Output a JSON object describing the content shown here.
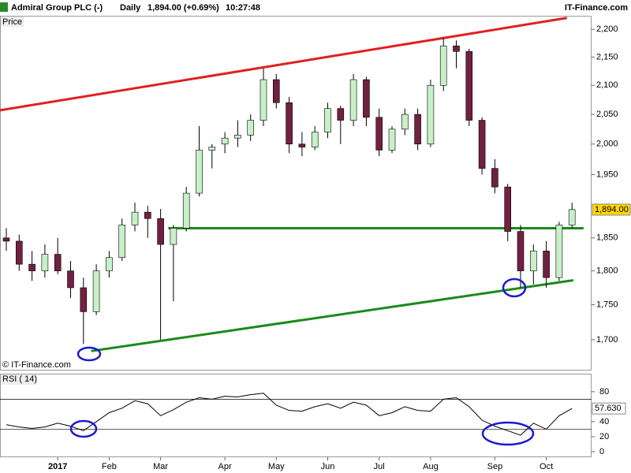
{
  "header": {
    "title": "Admiral Group PLC (-)",
    "period": "Daily",
    "quote": "1,894.00 (+0.69%)",
    "time": "10:27:48",
    "brand": "IT-Finance.com"
  },
  "chart_data": [
    {
      "type": "candlestick",
      "panel_label": "Price",
      "copyright": "© IT-Finance.com",
      "log_scale": true,
      "up_color": "#c8f0c8",
      "down_color": "#702040",
      "categories": [
        null,
        null,
        null,
        null,
        "2017",
        null,
        null,
        null,
        "Feb",
        null,
        null,
        null,
        "Mar",
        null,
        null,
        null,
        null,
        "Apr",
        null,
        null,
        null,
        "May",
        null,
        null,
        null,
        "Jun",
        null,
        null,
        null,
        "Jul",
        null,
        null,
        null,
        "Aug",
        null,
        null,
        null,
        null,
        "Sep",
        null,
        null,
        null,
        "Oct",
        null,
        null
      ],
      "open": [
        1850,
        1845,
        1810,
        1800,
        1825,
        1800,
        1775,
        1740,
        1800,
        1820,
        1870,
        1890,
        1880,
        1840,
        1865,
        1920,
        1990,
        2000,
        2010,
        2015,
        2040,
        2110,
        2070,
        2000,
        1995,
        2020,
        2060,
        2040,
        2110,
        2045,
        1990,
        2025,
        2050,
        2000,
        2100,
        2170,
        2160,
        2040,
        1960,
        1930,
        1860,
        1800,
        1830,
        1790,
        1870
      ],
      "high": [
        1865,
        1855,
        1830,
        1840,
        1850,
        1815,
        1790,
        1810,
        1830,
        1880,
        1905,
        1900,
        1895,
        1870,
        1930,
        2030,
        2000,
        2020,
        2040,
        2050,
        2130,
        2120,
        2080,
        2020,
        2030,
        2070,
        2065,
        2120,
        2115,
        2060,
        2030,
        2060,
        2060,
        2110,
        2185,
        2180,
        2165,
        2045,
        1975,
        1935,
        1870,
        1840,
        1845,
        1875,
        1905
      ],
      "low": [
        1830,
        1800,
        1785,
        1790,
        1795,
        1760,
        1694,
        1735,
        1790,
        1815,
        1860,
        1850,
        1700,
        1755,
        1860,
        1915,
        1960,
        1985,
        1995,
        2005,
        2030,
        2060,
        1985,
        1980,
        1990,
        2010,
        2000,
        2030,
        2030,
        1980,
        1985,
        2015,
        1990,
        1995,
        2090,
        2130,
        2030,
        1950,
        1920,
        1845,
        1775,
        1780,
        1775,
        1785,
        1865
      ],
      "close": [
        1845,
        1810,
        1800,
        1825,
        1800,
        1775,
        1740,
        1800,
        1820,
        1870,
        1890,
        1880,
        1840,
        1865,
        1920,
        1990,
        1995,
        2010,
        2015,
        2040,
        2110,
        2070,
        2000,
        1995,
        2020,
        2060,
        2040,
        2110,
        2045,
        1990,
        2025,
        2050,
        2000,
        2100,
        2170,
        2160,
        2040,
        1960,
        1930,
        1860,
        1800,
        1830,
        1790,
        1870,
        1894
      ],
      "last_price": 1894,
      "last_price_label": "1,894.00",
      "trendlines": [
        {
          "color": "#e02020",
          "x": [
            -0.5,
            43.6
          ],
          "y": [
            2057,
            2221
          ]
        },
        {
          "color": "#1a8a1a",
          "x": [
            12.6,
            44.9
          ],
          "y": [
            1865,
            1865
          ]
        },
        {
          "color": "#1a8a1a",
          "x": [
            6.6,
            44.1
          ],
          "y": [
            1684,
            1786
          ]
        }
      ],
      "ylim": [
        1657,
        2225
      ],
      "yticks": [
        {
          "value": 1700,
          "label": "1,700"
        },
        {
          "value": 1750,
          "label": "1,750"
        },
        {
          "value": 1800,
          "label": "1,800"
        },
        {
          "value": 1850,
          "label": "1,850"
        },
        {
          "value": 1950,
          "label": "1,950"
        },
        {
          "value": 2000,
          "label": "2,000"
        },
        {
          "value": 2050,
          "label": "2,050"
        },
        {
          "value": 2100,
          "label": "2,100"
        },
        {
          "value": 2150,
          "label": "2,150"
        },
        {
          "value": 2200,
          "label": "2,200"
        }
      ]
    },
    {
      "type": "line",
      "panel_label": "RSI ( 14)",
      "color": "#000000",
      "values": [
        36,
        33,
        31,
        33,
        38,
        34,
        28,
        40,
        52,
        58,
        68,
        64,
        48,
        56,
        66,
        72,
        70,
        74,
        73,
        76,
        78,
        62,
        55,
        54,
        60,
        64,
        58,
        66,
        62,
        48,
        52,
        60,
        55,
        54,
        70,
        72,
        60,
        42,
        34,
        28,
        22,
        38,
        30,
        48,
        57.63
      ],
      "last_value": 57.63,
      "last_value_label": "57.630",
      "levels": [
        70,
        30
      ],
      "ylim": [
        -7.4,
        103
      ],
      "yticks": [
        0,
        20,
        40,
        80
      ]
    }
  ]
}
